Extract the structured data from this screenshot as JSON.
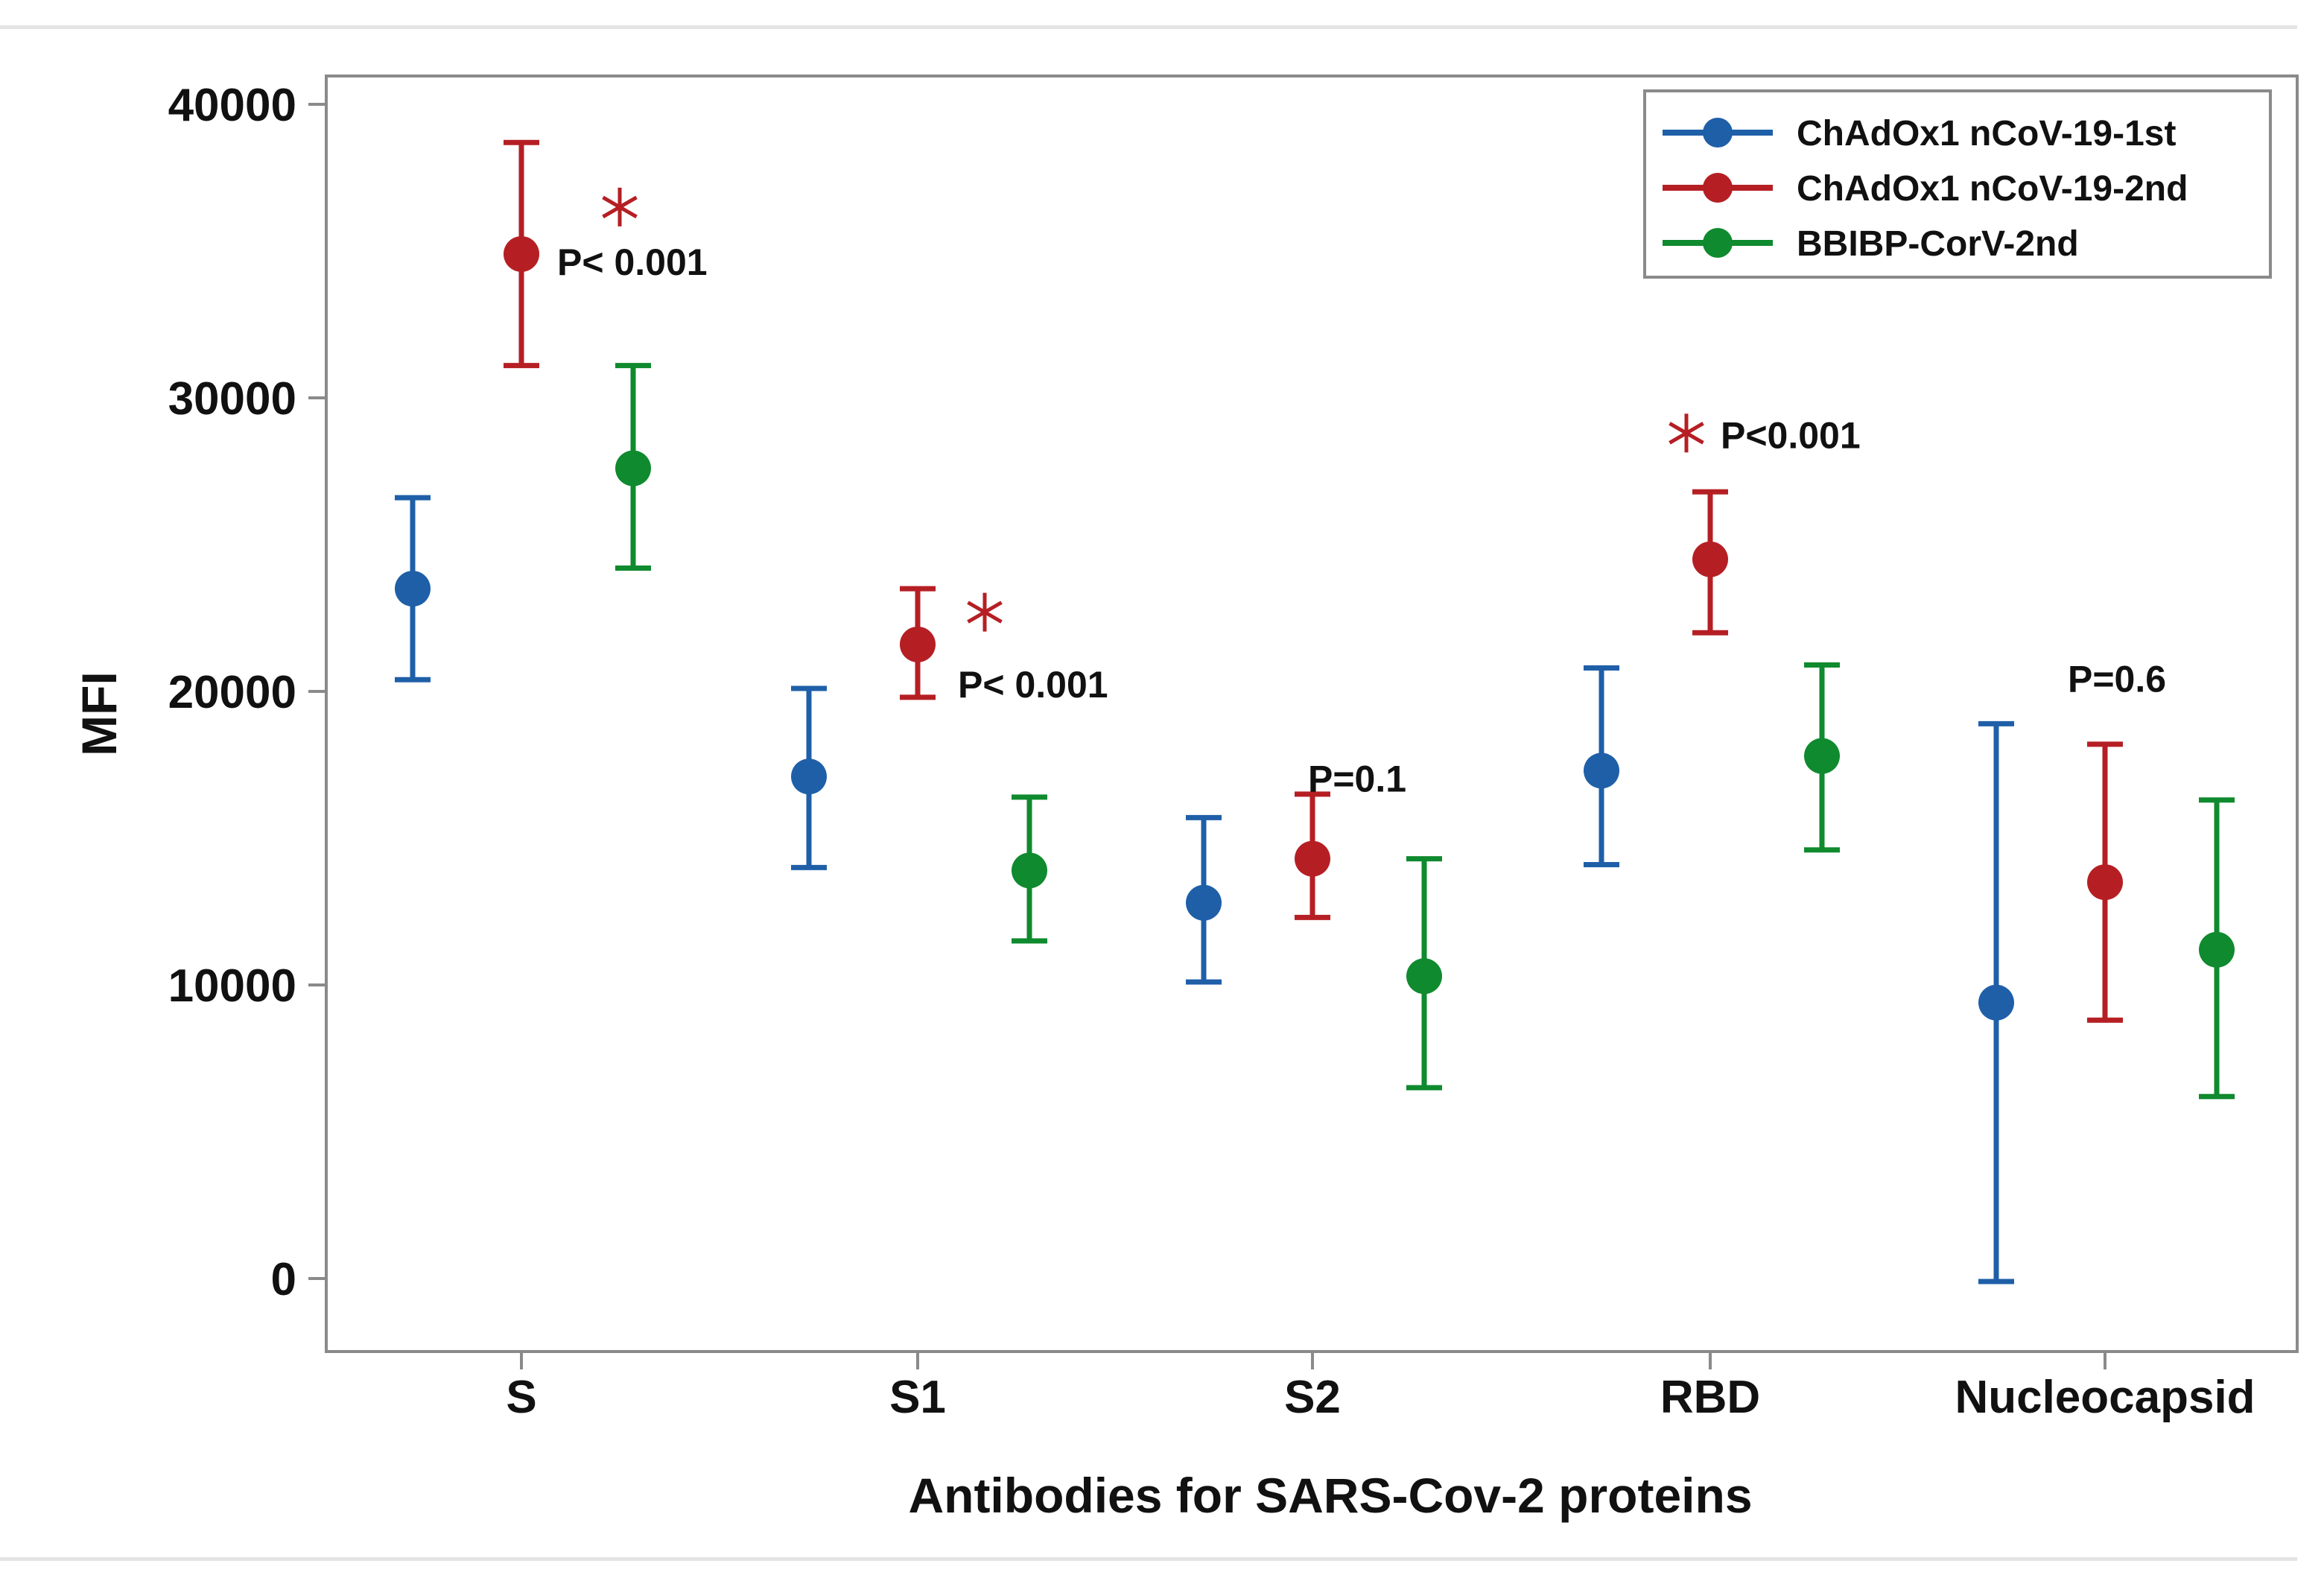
{
  "chart_data": {
    "type": "errorbar",
    "xlabel": "Antibodies for SARS-Cov-2 proteins",
    "ylabel": "MFI",
    "ylim": [
      0,
      42000
    ],
    "yticks": [
      0,
      10000,
      20000,
      30000,
      40000
    ],
    "ytick_labels": [
      "0",
      "10000",
      "20000",
      "30000",
      "40000"
    ],
    "categories": [
      "S",
      "S1",
      "S2",
      "RBD",
      "Nucleocapsid"
    ],
    "legend_position": "top-right",
    "series": [
      {
        "name": "ChAdOx1 nCoV-19-1st",
        "color": "#1f5fa8",
        "values": [
          23500,
          17100,
          12800,
          17300,
          9400
        ],
        "lower": [
          20400,
          14000,
          10100,
          14100,
          -100
        ],
        "upper": [
          26600,
          20100,
          15700,
          20800,
          18900
        ]
      },
      {
        "name": "ChAdOx1 nCoV-19-2nd",
        "color": "#b51f24",
        "values": [
          34900,
          21600,
          14300,
          24500,
          13500
        ],
        "lower": [
          31100,
          19800,
          12300,
          22000,
          8800
        ],
        "upper": [
          38700,
          23500,
          16500,
          26800,
          18200
        ]
      },
      {
        "name": "BBIBP-CorV-2nd",
        "color": "#0f8a2e",
        "values": [
          27600,
          13900,
          10300,
          17800,
          11200
        ],
        "lower": [
          24200,
          11500,
          6500,
          14600,
          6200
        ],
        "upper": [
          31100,
          16400,
          14300,
          20900,
          16300
        ]
      }
    ],
    "annotations": [
      {
        "text": "P< 0.001",
        "category": "S",
        "y": 34700,
        "star": true,
        "star_y": 36500
      },
      {
        "text": "P< 0.001",
        "category": "S1",
        "y": 20300,
        "star": true,
        "star_y": 22700
      },
      {
        "text": "P=0.1",
        "category": "S2",
        "y": 17100,
        "star": false
      },
      {
        "text": "P<0.001",
        "category": "RBD",
        "y": 28800,
        "star": true,
        "star_y": 28800
      },
      {
        "text": "P=0.6",
        "category": "Nucleocapsid",
        "y": 20500,
        "star": false
      }
    ]
  }
}
